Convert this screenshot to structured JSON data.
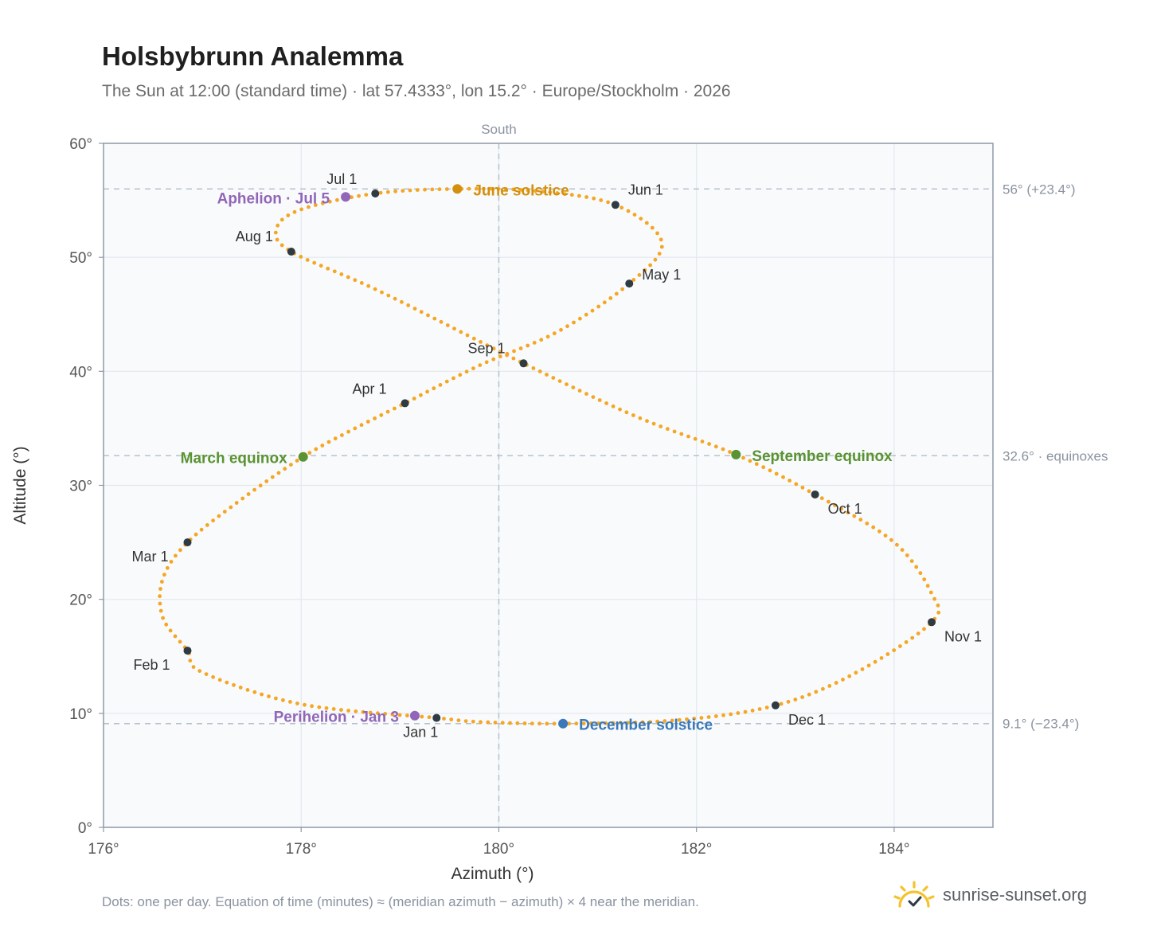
{
  "header": {
    "title": "Holsbybrunn Analemma",
    "subtitle": "The Sun at 12:00 (standard time) · lat 57.4333°, lon 15.2° · Europe/Stockholm · 2026"
  },
  "footer": {
    "note": "Dots: one per day. Equation of time (minutes) ≈ (meridian azimuth − azimuth) × 4 near the meridian.",
    "brand": "sunrise-sunset.org",
    "brand_icon": "sun-check-icon"
  },
  "chart_data": {
    "type": "scatter",
    "xlabel": "Azimuth (°)",
    "ylabel": "Altitude (°)",
    "xlim": [
      176,
      185
    ],
    "ylim": [
      0,
      60
    ],
    "x_ticks": [
      176,
      178,
      180,
      182,
      184
    ],
    "x_tick_labels": [
      "176°",
      "178°",
      "180°",
      "182°",
      "184°"
    ],
    "y_ticks": [
      0,
      10,
      20,
      30,
      40,
      50,
      60
    ],
    "y_tick_labels": [
      "0°",
      "10°",
      "20°",
      "30°",
      "40°",
      "50°",
      "60°"
    ],
    "grid": true,
    "meridian": {
      "x": 180,
      "label": "South"
    },
    "reference_lines": [
      {
        "y": 56.0,
        "label": "56° (+23.4°)"
      },
      {
        "y": 32.6,
        "label": "32.6° · equinoxes"
      },
      {
        "y": 9.1,
        "label": "9.1° (−23.4°)"
      }
    ],
    "daily_path": {
      "color": "#f5a623",
      "points": [
        [
          179.37,
          9.6
        ],
        [
          178.0,
          10.8
        ],
        [
          177.0,
          13.6
        ],
        [
          176.85,
          15.5
        ],
        [
          176.6,
          18.4
        ],
        [
          176.6,
          21.8
        ],
        [
          176.85,
          25.0
        ],
        [
          177.4,
          28.8
        ],
        [
          178.02,
          32.5
        ],
        [
          178.5,
          34.8
        ],
        [
          179.05,
          37.2
        ],
        [
          179.8,
          40.5
        ],
        [
          180.6,
          43.5
        ],
        [
          181.32,
          47.7
        ],
        [
          181.65,
          51.3
        ],
        [
          181.18,
          54.6
        ],
        [
          180.4,
          55.8
        ],
        [
          179.58,
          56.0
        ],
        [
          178.75,
          55.6
        ],
        [
          178.0,
          54.2
        ],
        [
          177.75,
          52.5
        ],
        [
          177.9,
          50.5
        ],
        [
          178.8,
          47.0
        ],
        [
          180.25,
          40.7
        ],
        [
          181.4,
          36.0
        ],
        [
          182.4,
          32.7
        ],
        [
          183.2,
          29.2
        ],
        [
          184.0,
          25.0
        ],
        [
          184.38,
          20.5
        ],
        [
          184.38,
          18.0
        ],
        [
          183.6,
          13.5
        ],
        [
          182.8,
          10.7
        ],
        [
          181.8,
          9.4
        ],
        [
          180.65,
          9.1
        ],
        [
          179.8,
          9.25
        ],
        [
          179.37,
          9.6
        ]
      ]
    },
    "month_markers": [
      {
        "label": "Jan 1",
        "x": 179.37,
        "y": 9.6
      },
      {
        "label": "Feb 1",
        "x": 176.85,
        "y": 15.5
      },
      {
        "label": "Mar 1",
        "x": 176.85,
        "y": 25.0
      },
      {
        "label": "Apr 1",
        "x": 179.05,
        "y": 37.2
      },
      {
        "label": "May 1",
        "x": 181.32,
        "y": 47.7
      },
      {
        "label": "Jun 1",
        "x": 181.18,
        "y": 54.6
      },
      {
        "label": "Jul 1",
        "x": 178.75,
        "y": 55.6
      },
      {
        "label": "Aug 1",
        "x": 177.9,
        "y": 50.5
      },
      {
        "label": "Sep 1",
        "x": 180.25,
        "y": 40.7
      },
      {
        "label": "Oct 1",
        "x": 183.2,
        "y": 29.2
      },
      {
        "label": "Nov 1",
        "x": 184.38,
        "y": 18.0
      },
      {
        "label": "Dec 1",
        "x": 182.8,
        "y": 10.7
      }
    ],
    "events": [
      {
        "label": "June solstice",
        "x": 179.58,
        "y": 56.0,
        "color": "#d4900d"
      },
      {
        "label": "March equinox",
        "x": 178.02,
        "y": 32.5,
        "color": "#5a9332"
      },
      {
        "label": "September equinox",
        "x": 182.4,
        "y": 32.7,
        "color": "#5a9332"
      },
      {
        "label": "December solstice",
        "x": 180.65,
        "y": 9.1,
        "color": "#3a78b8"
      },
      {
        "label": "Aphelion · Jul 5",
        "x": 178.45,
        "y": 55.3,
        "color": "#9166b8"
      },
      {
        "label": "Perihelion · Jan 3",
        "x": 179.15,
        "y": 9.8,
        "color": "#9166b8"
      }
    ],
    "colors": {
      "marker": "#2f3a42",
      "grid": "#e3e8ee",
      "plot_bg": "#f8fafc",
      "reference": "#b8c1cc",
      "axis": "#8f9aa8"
    }
  }
}
